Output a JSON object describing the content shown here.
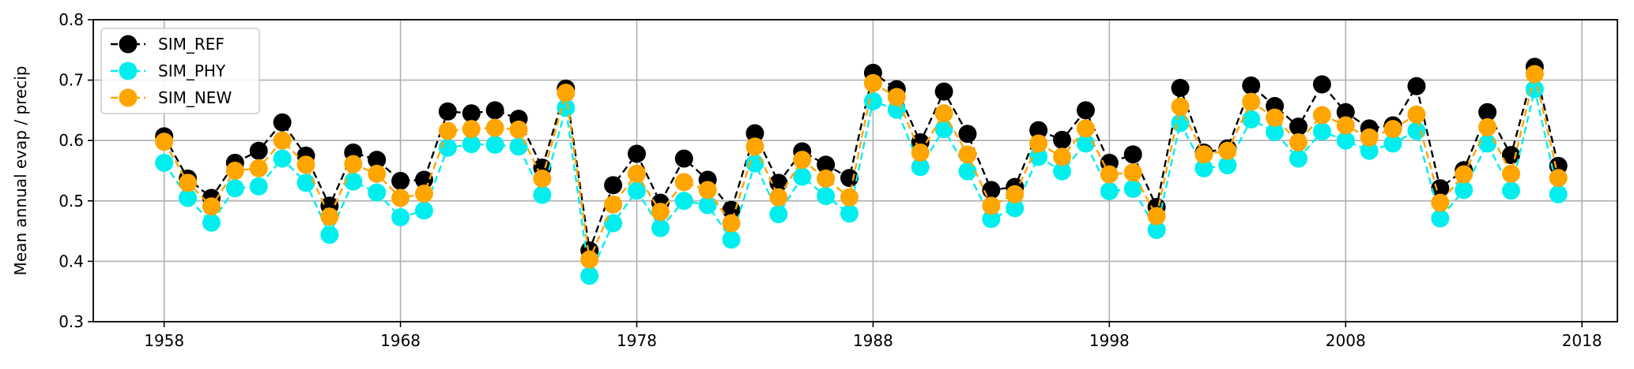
{
  "chart_data": {
    "type": "line",
    "ylabel": "Mean annual evap / precip",
    "xlim": [
      1955,
      2019.5
    ],
    "ylim": [
      0.3,
      0.8
    ],
    "x_ticks": [
      1958,
      1968,
      1978,
      1988,
      1998,
      2008,
      2018
    ],
    "y_ticks": [
      0.3,
      0.4,
      0.5,
      0.6,
      0.7,
      0.8
    ],
    "y_tick_labels": [
      "0.3",
      "0.4",
      "0.5",
      "0.6",
      "0.7",
      "0.8"
    ],
    "grid": true,
    "legend_position": "upper-left",
    "x": [
      1958,
      1959,
      1960,
      1961,
      1962,
      1963,
      1964,
      1965,
      1966,
      1967,
      1968,
      1969,
      1970,
      1971,
      1972,
      1973,
      1974,
      1975,
      1976,
      1977,
      1978,
      1979,
      1980,
      1981,
      1982,
      1983,
      1984,
      1985,
      1986,
      1987,
      1988,
      1989,
      1990,
      1991,
      1992,
      1993,
      1994,
      1995,
      1996,
      1997,
      1998,
      1999,
      2000,
      2001,
      2002,
      2003,
      2004,
      2005,
      2006,
      2007,
      2008,
      2009,
      2010,
      2011,
      2012,
      2013,
      2014,
      2015,
      2016,
      2017
    ],
    "series": [
      {
        "name": "SIM_REF",
        "color": "#000000",
        "values": [
          0.607,
          0.537,
          0.505,
          0.563,
          0.583,
          0.63,
          0.575,
          0.492,
          0.58,
          0.568,
          0.533,
          0.535,
          0.648,
          0.645,
          0.65,
          0.636,
          0.555,
          0.686,
          0.418,
          0.526,
          0.578,
          0.497,
          0.57,
          0.535,
          0.485,
          0.612,
          0.53,
          0.582,
          0.56,
          0.538,
          0.712,
          0.685,
          0.597,
          0.681,
          0.611,
          0.518,
          0.523,
          0.617,
          0.601,
          0.65,
          0.563,
          0.577,
          0.49,
          0.687,
          0.58,
          0.587,
          0.691,
          0.657,
          0.623,
          0.693,
          0.647,
          0.62,
          0.625,
          0.69,
          0.521,
          0.551,
          0.647,
          0.576,
          0.722,
          0.558
        ]
      },
      {
        "name": "SIM_PHY",
        "color": "#00eeee",
        "values": [
          0.563,
          0.505,
          0.464,
          0.521,
          0.524,
          0.57,
          0.53,
          0.444,
          0.532,
          0.514,
          0.473,
          0.484,
          0.588,
          0.594,
          0.593,
          0.59,
          0.51,
          0.654,
          0.376,
          0.463,
          0.517,
          0.455,
          0.5,
          0.493,
          0.436,
          0.562,
          0.478,
          0.54,
          0.508,
          0.479,
          0.665,
          0.651,
          0.556,
          0.619,
          0.549,
          0.47,
          0.488,
          0.573,
          0.549,
          0.595,
          0.516,
          0.52,
          0.452,
          0.629,
          0.554,
          0.559,
          0.635,
          0.614,
          0.57,
          0.615,
          0.6,
          0.583,
          0.595,
          0.616,
          0.471,
          0.518,
          0.595,
          0.517,
          0.685,
          0.511
        ]
      },
      {
        "name": "SIM_NEW",
        "color": "#ffa500",
        "values": [
          0.598,
          0.53,
          0.491,
          0.55,
          0.554,
          0.6,
          0.56,
          0.474,
          0.561,
          0.545,
          0.505,
          0.512,
          0.616,
          0.619,
          0.621,
          0.618,
          0.537,
          0.679,
          0.403,
          0.494,
          0.545,
          0.482,
          0.531,
          0.518,
          0.463,
          0.59,
          0.506,
          0.568,
          0.537,
          0.506,
          0.695,
          0.672,
          0.58,
          0.645,
          0.577,
          0.492,
          0.511,
          0.595,
          0.573,
          0.62,
          0.544,
          0.547,
          0.475,
          0.656,
          0.577,
          0.583,
          0.664,
          0.638,
          0.597,
          0.642,
          0.625,
          0.605,
          0.619,
          0.643,
          0.497,
          0.544,
          0.622,
          0.545,
          0.71,
          0.538
        ]
      }
    ]
  }
}
